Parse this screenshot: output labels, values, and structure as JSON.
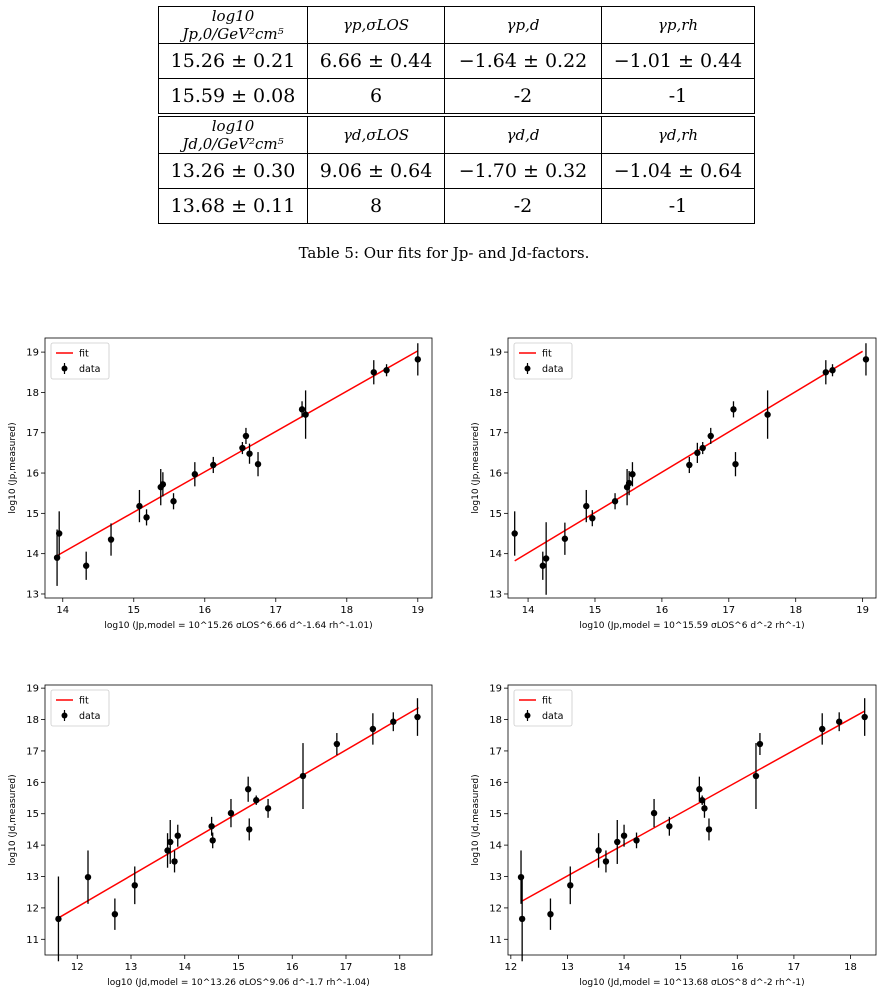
{
  "tables": [
    {
      "header": [
        "log10 Jp,0/GeV²cm⁵",
        "γp,σLOS",
        "γp,d",
        "γp,rh"
      ],
      "rows": [
        [
          "15.26 ± 0.21",
          "6.66 ± 0.44",
          "−1.64 ± 0.22",
          "−1.01 ± 0.44"
        ],
        [
          "15.59 ± 0.08",
          "6",
          "-2",
          "-1"
        ]
      ]
    },
    {
      "header": [
        "log10 Jd,0/GeV²cm⁵",
        "γd,σLOS",
        "γd,d",
        "γd,rh"
      ],
      "rows": [
        [
          "13.26 ± 0.30",
          "9.06 ± 0.64",
          "−1.70 ± 0.32",
          "−1.04 ± 0.64"
        ],
        [
          "13.68 ± 0.11",
          "8",
          "-2",
          "-1"
        ]
      ]
    }
  ],
  "caption": "Table 5:  Our fits for Jp- and Jd-factors.",
  "legend": {
    "fit": "fit",
    "data": "data"
  },
  "colors": {
    "fit": "#ff0000",
    "data": "#000000"
  },
  "chart_data": [
    {
      "type": "scatter",
      "xlabel": "log10 (Jp,model = 10^15.26 σLOS^6.66 d^-1.64 rh^-1.01)",
      "ylabel": "log10 (Jp,measured)",
      "xlim": [
        13.75,
        19.2
      ],
      "ylim": [
        12.9,
        19.35
      ],
      "xticks": [
        14,
        15,
        16,
        17,
        18,
        19
      ],
      "yticks": [
        13,
        14,
        15,
        16,
        17,
        18,
        19
      ],
      "legend": "upper left",
      "fit": {
        "x": [
          13.9,
          19.0
        ],
        "y": [
          13.93,
          19.03
        ]
      },
      "points": [
        {
          "x": 13.92,
          "y": 13.9,
          "err": 0.7
        },
        {
          "x": 13.95,
          "y": 14.5,
          "err": 0.55
        },
        {
          "x": 14.33,
          "y": 13.7,
          "err": 0.35
        },
        {
          "x": 14.68,
          "y": 14.35,
          "err": 0.4
        },
        {
          "x": 15.08,
          "y": 15.18,
          "err": 0.4
        },
        {
          "x": 15.18,
          "y": 14.9,
          "err": 0.2
        },
        {
          "x": 15.38,
          "y": 15.65,
          "err": 0.45
        },
        {
          "x": 15.41,
          "y": 15.72,
          "err": 0.3
        },
        {
          "x": 15.56,
          "y": 15.3,
          "err": 0.2
        },
        {
          "x": 15.86,
          "y": 15.97,
          "err": 0.3
        },
        {
          "x": 16.12,
          "y": 16.2,
          "err": 0.2
        },
        {
          "x": 16.53,
          "y": 16.62,
          "err": 0.15
        },
        {
          "x": 16.58,
          "y": 16.92,
          "err": 0.2
        },
        {
          "x": 16.63,
          "y": 16.48,
          "err": 0.25
        },
        {
          "x": 16.75,
          "y": 16.22,
          "err": 0.3
        },
        {
          "x": 17.37,
          "y": 17.58,
          "err": 0.2
        },
        {
          "x": 17.42,
          "y": 17.45,
          "err": 0.6
        },
        {
          "x": 18.38,
          "y": 18.5,
          "err": 0.3
        },
        {
          "x": 18.56,
          "y": 18.55,
          "err": 0.15
        },
        {
          "x": 19.0,
          "y": 18.82,
          "err": 0.4
        }
      ]
    },
    {
      "type": "scatter",
      "xlabel": "log10 (Jp,model = 10^15.59 σLOS^6 d^-2 rh^-1)",
      "ylabel": "log10 (Jp,measured)",
      "xlim": [
        13.7,
        19.2
      ],
      "ylim": [
        12.9,
        19.35
      ],
      "xticks": [
        14,
        15,
        16,
        17,
        18,
        19
      ],
      "yticks": [
        13,
        14,
        15,
        16,
        17,
        18,
        19
      ],
      "legend": "upper left",
      "fit": {
        "x": [
          13.8,
          19.0
        ],
        "y": [
          13.82,
          19.02
        ]
      },
      "points": [
        {
          "x": 13.8,
          "y": 14.5,
          "err": 0.55
        },
        {
          "x": 14.22,
          "y": 13.7,
          "err": 0.35
        },
        {
          "x": 14.27,
          "y": 13.88,
          "err": 0.9
        },
        {
          "x": 14.55,
          "y": 14.37,
          "err": 0.4
        },
        {
          "x": 14.87,
          "y": 15.18,
          "err": 0.4
        },
        {
          "x": 14.96,
          "y": 14.88,
          "err": 0.2
        },
        {
          "x": 15.3,
          "y": 15.3,
          "err": 0.2
        },
        {
          "x": 15.48,
          "y": 15.65,
          "err": 0.45
        },
        {
          "x": 15.51,
          "y": 15.75,
          "err": 0.3
        },
        {
          "x": 15.56,
          "y": 15.97,
          "err": 0.3
        },
        {
          "x": 16.41,
          "y": 16.2,
          "err": 0.2
        },
        {
          "x": 16.53,
          "y": 16.5,
          "err": 0.25
        },
        {
          "x": 16.61,
          "y": 16.62,
          "err": 0.15
        },
        {
          "x": 16.73,
          "y": 16.92,
          "err": 0.2
        },
        {
          "x": 17.07,
          "y": 17.58,
          "err": 0.2
        },
        {
          "x": 17.1,
          "y": 16.22,
          "err": 0.3
        },
        {
          "x": 17.58,
          "y": 17.45,
          "err": 0.6
        },
        {
          "x": 18.45,
          "y": 18.5,
          "err": 0.3
        },
        {
          "x": 18.55,
          "y": 18.55,
          "err": 0.15
        },
        {
          "x": 19.05,
          "y": 18.82,
          "err": 0.4
        }
      ]
    },
    {
      "type": "scatter",
      "xlabel": "log10 (Jd,model = 10^13.26 σLOS^9.06 d^-1.7 rh^-1.04)",
      "ylabel": "log10 (Jd,measured)",
      "xlim": [
        11.4,
        18.6
      ],
      "ylim": [
        10.5,
        19.1
      ],
      "xticks": [
        12,
        13,
        14,
        15,
        16,
        17,
        18
      ],
      "yticks": [
        11,
        12,
        13,
        14,
        15,
        16,
        17,
        18,
        19
      ],
      "legend": "upper left",
      "fit": {
        "x": [
          11.65,
          18.35
        ],
        "y": [
          11.68,
          18.38
        ]
      },
      "points": [
        {
          "x": 11.65,
          "y": 11.65,
          "err": 1.35
        },
        {
          "x": 12.2,
          "y": 12.98,
          "err": 0.85
        },
        {
          "x": 12.7,
          "y": 11.8,
          "err": 0.5
        },
        {
          "x": 13.07,
          "y": 12.72,
          "err": 0.6
        },
        {
          "x": 13.68,
          "y": 13.83,
          "err": 0.55
        },
        {
          "x": 13.73,
          "y": 14.1,
          "err": 0.7
        },
        {
          "x": 13.81,
          "y": 13.48,
          "err": 0.35
        },
        {
          "x": 13.87,
          "y": 14.3,
          "err": 0.35
        },
        {
          "x": 14.5,
          "y": 14.6,
          "err": 0.3
        },
        {
          "x": 14.52,
          "y": 14.15,
          "err": 0.25
        },
        {
          "x": 14.86,
          "y": 15.02,
          "err": 0.45
        },
        {
          "x": 15.18,
          "y": 15.78,
          "err": 0.4
        },
        {
          "x": 15.2,
          "y": 14.5,
          "err": 0.35
        },
        {
          "x": 15.33,
          "y": 15.43,
          "err": 0.15
        },
        {
          "x": 15.55,
          "y": 15.17,
          "err": 0.3
        },
        {
          "x": 16.2,
          "y": 16.2,
          "err": 1.05
        },
        {
          "x": 16.83,
          "y": 17.22,
          "err": 0.35
        },
        {
          "x": 17.5,
          "y": 17.7,
          "err": 0.5
        },
        {
          "x": 17.88,
          "y": 17.93,
          "err": 0.3
        },
        {
          "x": 18.33,
          "y": 18.08,
          "err": 0.6
        }
      ]
    },
    {
      "type": "scatter",
      "xlabel": "log10 (Jd,model = 10^13.68 σLOS^8 d^-2 rh^-1)",
      "ylabel": "log10 (Jd,measured)",
      "xlim": [
        11.95,
        18.45
      ],
      "ylim": [
        10.5,
        19.1
      ],
      "xticks": [
        12,
        13,
        14,
        15,
        16,
        17,
        18
      ],
      "yticks": [
        11,
        12,
        13,
        14,
        15,
        16,
        17,
        18,
        19
      ],
      "legend": "upper left",
      "fit": {
        "x": [
          12.18,
          18.25
        ],
        "y": [
          12.2,
          18.27
        ]
      },
      "points": [
        {
          "x": 12.18,
          "y": 12.98,
          "err": 0.85
        },
        {
          "x": 12.2,
          "y": 11.65,
          "err": 1.35
        },
        {
          "x": 12.7,
          "y": 11.8,
          "err": 0.5
        },
        {
          "x": 13.05,
          "y": 12.72,
          "err": 0.6
        },
        {
          "x": 13.55,
          "y": 13.83,
          "err": 0.55
        },
        {
          "x": 13.68,
          "y": 13.48,
          "err": 0.35
        },
        {
          "x": 13.88,
          "y": 14.1,
          "err": 0.7
        },
        {
          "x": 14.0,
          "y": 14.3,
          "err": 0.35
        },
        {
          "x": 14.22,
          "y": 14.15,
          "err": 0.25
        },
        {
          "x": 14.53,
          "y": 15.02,
          "err": 0.45
        },
        {
          "x": 14.8,
          "y": 14.6,
          "err": 0.3
        },
        {
          "x": 15.33,
          "y": 15.78,
          "err": 0.4
        },
        {
          "x": 15.38,
          "y": 15.43,
          "err": 0.15
        },
        {
          "x": 15.42,
          "y": 15.17,
          "err": 0.3
        },
        {
          "x": 15.5,
          "y": 14.5,
          "err": 0.35
        },
        {
          "x": 16.33,
          "y": 16.2,
          "err": 1.05
        },
        {
          "x": 16.4,
          "y": 17.22,
          "err": 0.35
        },
        {
          "x": 17.5,
          "y": 17.7,
          "err": 0.5
        },
        {
          "x": 17.8,
          "y": 17.93,
          "err": 0.3
        },
        {
          "x": 18.25,
          "y": 18.08,
          "err": 0.6
        }
      ]
    }
  ]
}
